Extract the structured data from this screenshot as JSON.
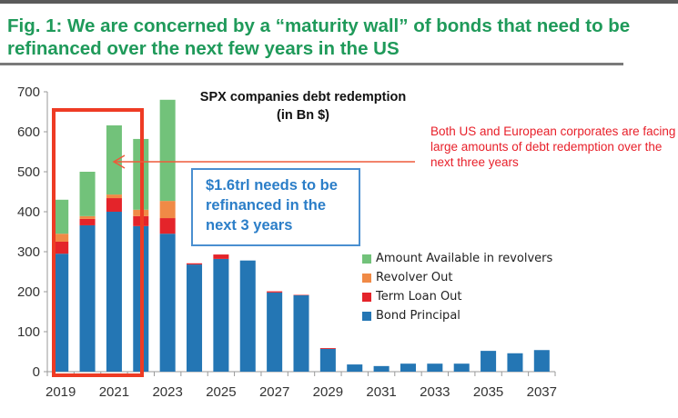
{
  "figure": {
    "title": "Fig. 1: We are concerned by a “maturity wall” of bonds that need to be refinanced over the next few years in the US"
  },
  "annotations": {
    "red_note": "Both US and European corporates are facing large amounts of debt redemption over the next three years",
    "callout": "$1.6trl needs to be refinanced in the next 3 years",
    "highlight_years": [
      "2019",
      "2020",
      "2021"
    ]
  },
  "colors": {
    "title_green": "#1f9a5a",
    "bond": "#2476b4",
    "term_loan": "#e4242a",
    "revolver_out": "#f08a46",
    "available": "#72c27a",
    "highlight_box": "#ee3b24",
    "callout_blue": "#2b7ec8"
  },
  "chart_data": {
    "type": "bar",
    "stacked": true,
    "title": "SPX companies debt redemption",
    "subtitle": "(in Bn $)",
    "xlabel": "",
    "ylabel": "",
    "ylim": [
      0,
      700
    ],
    "yticks": [
      0,
      100,
      200,
      300,
      400,
      500,
      600,
      700
    ],
    "xtick_labels": [
      "2019",
      "2021",
      "2023",
      "2025",
      "2027",
      "2029",
      "2031",
      "2033",
      "2035",
      "2037"
    ],
    "categories": [
      "2019",
      "2020",
      "2021",
      "2022",
      "2023",
      "2024",
      "2025",
      "2026",
      "2027",
      "2028",
      "2029",
      "2030",
      "2031",
      "2032",
      "2033",
      "2034",
      "2035",
      "2036",
      "2037"
    ],
    "legend_position": "right",
    "series": [
      {
        "name": "Bond Principal",
        "color_key": "bond",
        "values": [
          295,
          366,
          400,
          364,
          345,
          268,
          282,
          278,
          198,
          191,
          57,
          18,
          14,
          20,
          20,
          20,
          52,
          46,
          54
        ]
      },
      {
        "name": "Term Loan Out",
        "color_key": "term_loan",
        "values": [
          30,
          16,
          34,
          25,
          39,
          3,
          11,
          0,
          3,
          1,
          2,
          0,
          0,
          0,
          0,
          0,
          0,
          0,
          0
        ]
      },
      {
        "name": "Revolver Out",
        "color_key": "revolver_out",
        "values": [
          20,
          7,
          9,
          16,
          43,
          0,
          0,
          0,
          0,
          0,
          0,
          0,
          0,
          0,
          0,
          0,
          0,
          0,
          0
        ]
      },
      {
        "name": "Amount Available in revolvers",
        "color_key": "available",
        "values": [
          85,
          111,
          173,
          177,
          253,
          0,
          0,
          0,
          0,
          0,
          0,
          0,
          0,
          0,
          0,
          0,
          0,
          0,
          0
        ]
      }
    ],
    "legend": [
      "Amount Available in revolvers",
      "Revolver Out",
      "Term Loan Out",
      "Bond Principal"
    ],
    "grid": false
  }
}
